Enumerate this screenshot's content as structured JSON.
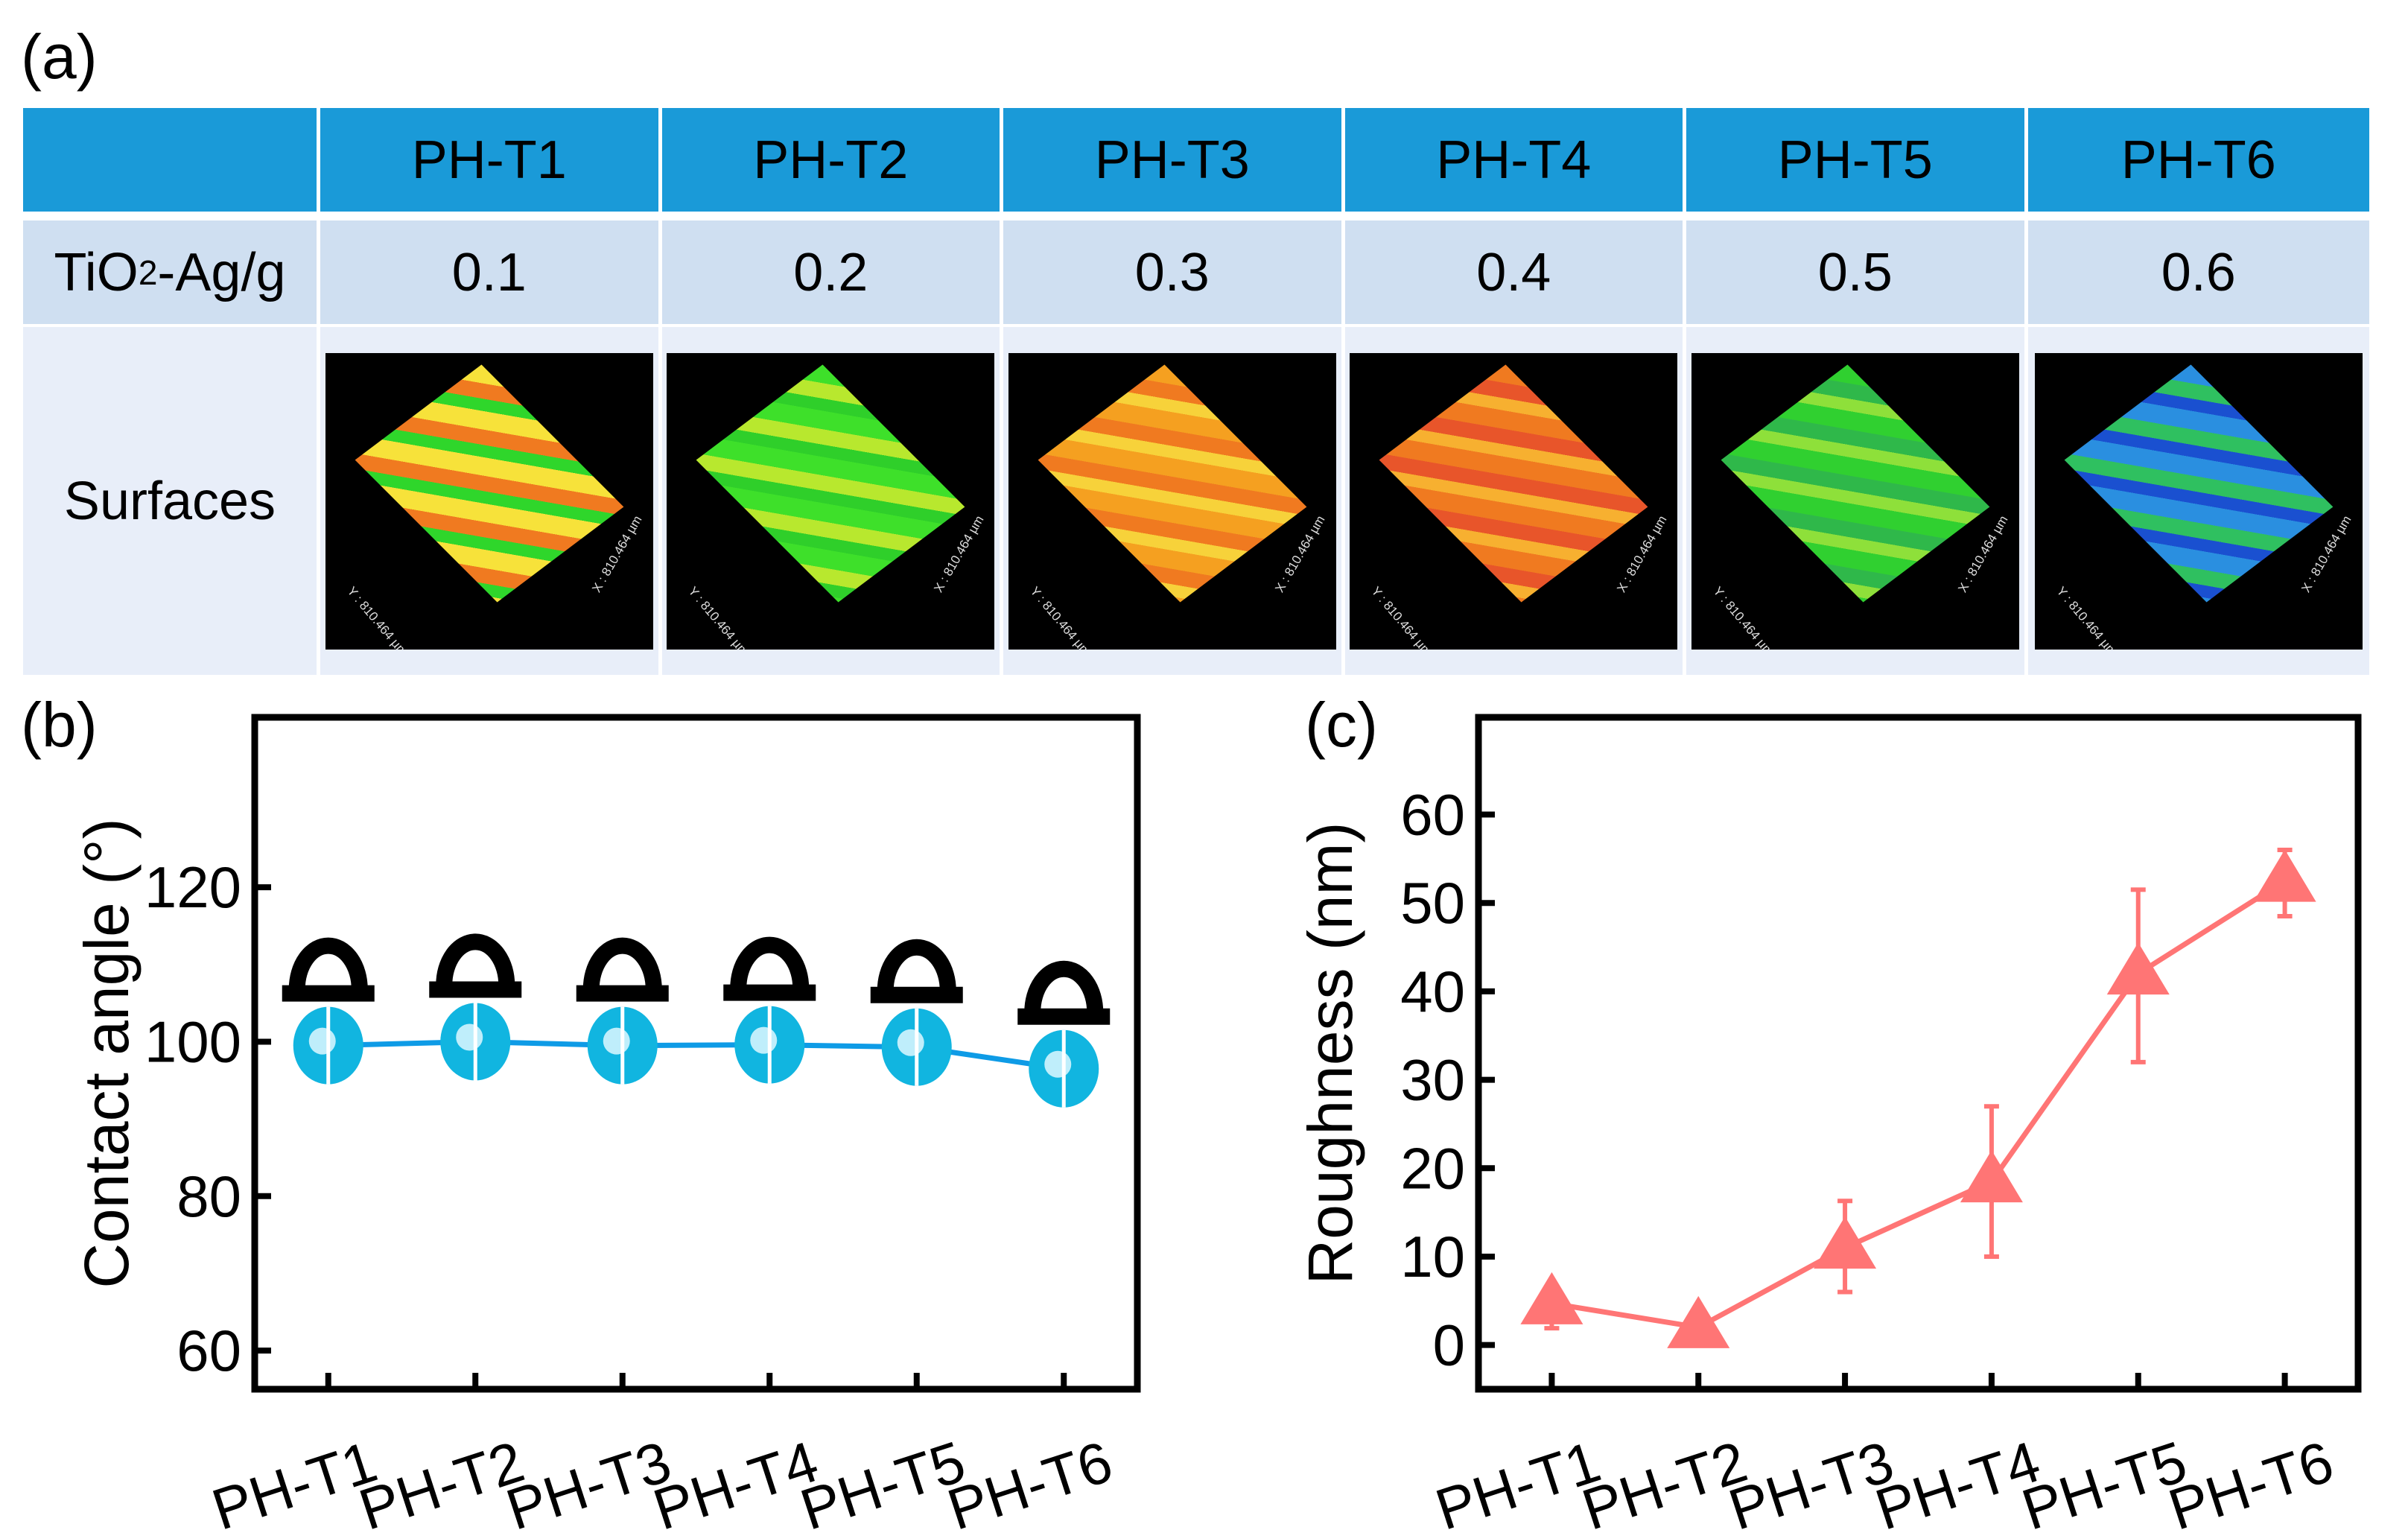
{
  "panels": {
    "a": "(a)",
    "b": "(b)",
    "c": "(c)"
  },
  "table": {
    "headers": [
      "PH-T1",
      "PH-T2",
      "PH-T3",
      "PH-T4",
      "PH-T5",
      "PH-T6"
    ],
    "row_label_loading": {
      "pre": "TiO",
      "sub": "2",
      "post": "-Ag/g"
    },
    "loading_values": [
      "0.1",
      "0.2",
      "0.3",
      "0.4",
      "0.5",
      "0.6"
    ],
    "row_label_surfaces": "Surfaces",
    "surface_axis_x": "X : 810.464 µm",
    "surface_axis_y": "Y : 810.464 µm",
    "surface_colors": [
      [
        "#f7e23a",
        "#f07a20",
        "#2fd62b"
      ],
      [
        "#3ee02a",
        "#b8e82e",
        "#2fcf2a"
      ],
      [
        "#f5a020",
        "#f07a20",
        "#f7d23a"
      ],
      [
        "#f07a20",
        "#e8552a",
        "#f7b030"
      ],
      [
        "#30d030",
        "#2fb84a",
        "#8ee03a"
      ],
      [
        "#2a8fe0",
        "#2fc060",
        "#1a50d0"
      ]
    ]
  },
  "chart_data": [
    {
      "type": "line",
      "categories": [
        "PH-T1",
        "PH-T2",
        "PH-T3",
        "PH-T4",
        "PH-T5",
        "PH-T6"
      ],
      "values": [
        99.5,
        100.0,
        99.5,
        99.6,
        99.3,
        96.5
      ],
      "xlabel": "",
      "ylabel": "Contact angle (°)",
      "ylim": [
        55,
        142
      ],
      "yticks": [
        60,
        80,
        100,
        120
      ],
      "color": "#0e9be6",
      "marker_color": "#11b5e0",
      "grid": false
    },
    {
      "type": "line",
      "categories": [
        "PH-T1",
        "PH-T2",
        "PH-T3",
        "PH-T4",
        "PH-T5",
        "PH-T6"
      ],
      "values": [
        4.7,
        2.0,
        11.0,
        18.5,
        42.0,
        52.5
      ],
      "error_low": [
        1.9,
        2.0,
        6.0,
        10.0,
        32.0,
        48.5
      ],
      "error_high": [
        5.0,
        2.0,
        16.3,
        27.0,
        51.5,
        56.0
      ],
      "xlabel": "",
      "ylabel": "Roughness (nm)",
      "ylim": [
        -5,
        71
      ],
      "yticks": [
        0,
        10,
        20,
        30,
        40,
        50,
        60
      ],
      "color": "#ff7575",
      "grid": false
    }
  ]
}
